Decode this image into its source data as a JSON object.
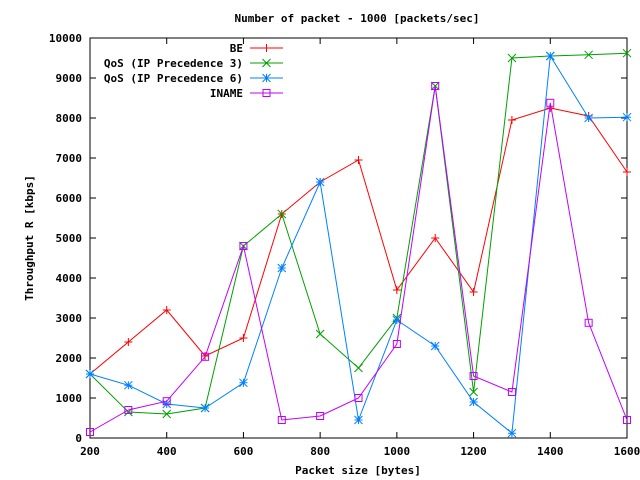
{
  "chart_data": {
    "type": "line",
    "title": "Number of packet - 1000 [packets/sec]",
    "xlabel": "Packet size [bytes]",
    "ylabel": "Throughput R [kbps]",
    "xlim": [
      200,
      1600
    ],
    "ylim": [
      0,
      10000
    ],
    "xticks": [
      200,
      400,
      600,
      800,
      1000,
      1200,
      1400,
      1600
    ],
    "yticks": [
      0,
      1000,
      2000,
      3000,
      4000,
      5000,
      6000,
      7000,
      8000,
      9000,
      10000
    ],
    "grid": false,
    "legend_position": "top-right",
    "x": [
      200,
      300,
      400,
      500,
      600,
      700,
      800,
      900,
      1000,
      1100,
      1200,
      1300,
      1400,
      1500,
      1600
    ],
    "series": [
      {
        "name": "BE",
        "color": "#ff0000",
        "marker": "plus",
        "values": [
          1600,
          2400,
          3200,
          2050,
          2500,
          5600,
          6400,
          6950,
          3700,
          5000,
          3650,
          7950,
          8250,
          8050,
          6650
        ]
      },
      {
        "name": "QoS (IP Precedence 3)",
        "color": "#00a000",
        "marker": "cross",
        "values": [
          1600,
          650,
          600,
          750,
          4800,
          5600,
          2600,
          1750,
          3000,
          8800,
          1150,
          9500,
          9550,
          9580,
          9620
        ]
      },
      {
        "name": "QoS (IP Precedence 6)",
        "color": "#0080ff",
        "marker": "star",
        "values": [
          1600,
          1320,
          850,
          750,
          1380,
          4250,
          6400,
          450,
          2950,
          2300,
          900,
          120,
          9550,
          8000,
          8020
        ]
      },
      {
        "name": "INAME",
        "color": "#c000ff",
        "marker": "square",
        "values": [
          150,
          700,
          920,
          2030,
          4800,
          450,
          550,
          1000,
          2350,
          8800,
          1550,
          1150,
          8380,
          2880,
          450
        ]
      }
    ]
  }
}
